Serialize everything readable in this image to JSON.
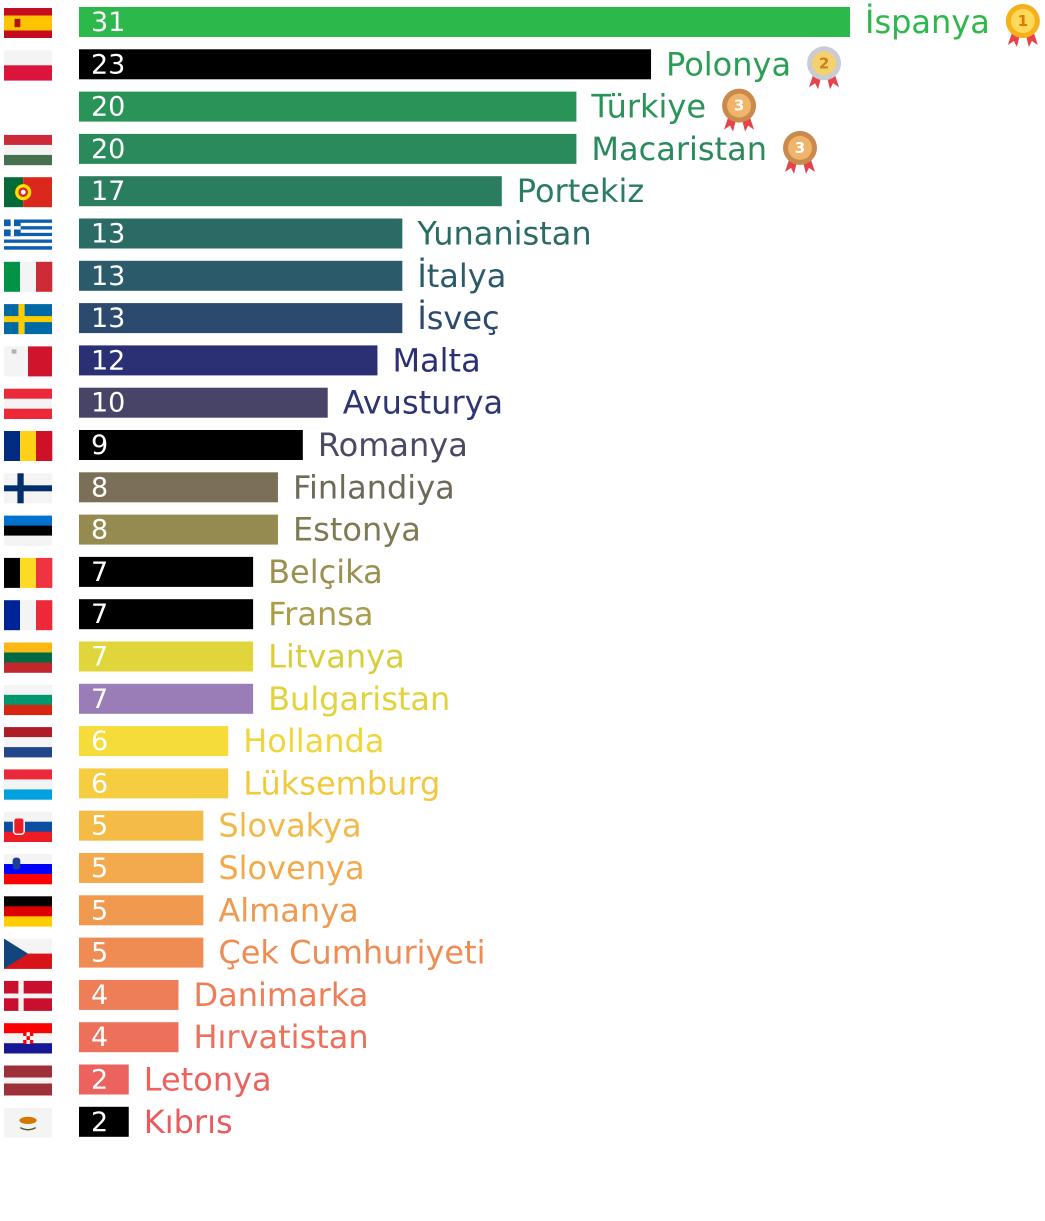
{
  "chart_data": {
    "type": "bar",
    "orientation": "horizontal",
    "title": "",
    "xlabel": "",
    "ylabel": "",
    "xlim": [
      0,
      31
    ],
    "grid": false,
    "legend": "none",
    "bars": [
      {
        "label": "İspanya",
        "value": 31,
        "color": "#2db84c",
        "flag": "spain-flag-icon",
        "medal": "1"
      },
      {
        "label": "Polonya",
        "value": 23,
        "color": "#000000",
        "label_color": "#2b9e56",
        "flag": "poland-flag-icon",
        "medal": "2"
      },
      {
        "label": "Türkiye",
        "value": 20,
        "color": "#2a9458",
        "flag": "",
        "medal": "3"
      },
      {
        "label": "Macaristan",
        "value": 20,
        "color": "#2a8a5c",
        "flag": "hungary-flag-icon",
        "medal": "3"
      },
      {
        "label": "Portekiz",
        "value": 17,
        "color": "#2b7d60",
        "flag": "portugal-flag-icon",
        "medal": ""
      },
      {
        "label": "Yunanistan",
        "value": 13,
        "color": "#2b6b65",
        "flag": "greece-flag-icon",
        "medal": ""
      },
      {
        "label": "İtalya",
        "value": 13,
        "color": "#2b5a6a",
        "flag": "italy-flag-icon",
        "medal": ""
      },
      {
        "label": "İsveç",
        "value": 13,
        "color": "#2b4a6e",
        "flag": "sweden-flag-icon",
        "medal": ""
      },
      {
        "label": "Malta",
        "value": 12,
        "color": "#2b2f73",
        "flag": "malta-flag-icon",
        "medal": ""
      },
      {
        "label": "Avusturya",
        "value": 10,
        "color": "#474468",
        "label_color": "#2f3570",
        "flag": "austria-flag-icon",
        "medal": ""
      },
      {
        "label": "Romanya",
        "value": 9,
        "color": "#000000",
        "label_color": "#4a4a64",
        "flag": "romania-flag-icon",
        "medal": ""
      },
      {
        "label": "Finlandiya",
        "value": 8,
        "color": "#7c6f57",
        "label_color": "#6e6a58",
        "flag": "finland-flag-icon",
        "medal": ""
      },
      {
        "label": "Estonya",
        "value": 8,
        "color": "#958b50",
        "label_color": "#7f7a54",
        "flag": "estonia-flag-icon",
        "medal": ""
      },
      {
        "label": "Belçika",
        "value": 7,
        "color": "#000000",
        "label_color": "#9a9050",
        "flag": "belgium-flag-icon",
        "medal": ""
      },
      {
        "label": "Fransa",
        "value": 7,
        "color": "#000000",
        "label_color": "#a89d48",
        "flag": "france-flag-icon",
        "medal": ""
      },
      {
        "label": "Litvanya",
        "value": 7,
        "color": "#e0d53a",
        "label_color": "#d8ce3c",
        "flag": "lithuania-flag-icon",
        "medal": ""
      },
      {
        "label": "Bulgaristan",
        "value": 7,
        "color": "#9a7cb6",
        "label_color": "#e2d23c",
        "flag": "bulgaria-flag-icon",
        "medal": ""
      },
      {
        "label": "Hollanda",
        "value": 6,
        "color": "#f6dc3a",
        "label_color": "#f2d53a",
        "flag": "netherlands-flag-icon",
        "medal": ""
      },
      {
        "label": "Lüksemburg",
        "value": 6,
        "color": "#f5cd40",
        "label_color": "#f1c93e",
        "flag": "luxembourg-flag-icon",
        "medal": ""
      },
      {
        "label": "Slovakya",
        "value": 5,
        "color": "#f4bb47",
        "label_color": "#f2b948",
        "flag": "slovakia-flag-icon",
        "medal": ""
      },
      {
        "label": "Slovenya",
        "value": 5,
        "color": "#f2aa4c",
        "label_color": "#f1a94c",
        "flag": "slovenia-flag-icon",
        "medal": ""
      },
      {
        "label": "Almanya",
        "value": 5,
        "color": "#f09a50",
        "label_color": "#ef9a50",
        "flag": "germany-flag-icon",
        "medal": ""
      },
      {
        "label": "Çek Cumhuriyeti",
        "value": 5,
        "color": "#ef8c54",
        "label_color": "#ee8c54",
        "flag": "czech-flag-icon",
        "medal": ""
      },
      {
        "label": "Danimarka",
        "value": 4,
        "color": "#ee7e58",
        "label_color": "#ed7e58",
        "flag": "denmark-flag-icon",
        "medal": ""
      },
      {
        "label": "Hırvatistan",
        "value": 4,
        "color": "#ed705b",
        "label_color": "#ec705b",
        "flag": "croatia-flag-icon",
        "medal": ""
      },
      {
        "label": "Letonya",
        "value": 2,
        "color": "#ec625e",
        "label_color": "#eb625e",
        "flag": "latvia-flag-icon",
        "medal": ""
      },
      {
        "label": "Kıbrıs",
        "value": 2,
        "color": "#000000",
        "label_color": "#e95c5e",
        "flag": "cyprus-flag-icon",
        "medal": ""
      }
    ]
  }
}
